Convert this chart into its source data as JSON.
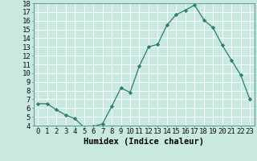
{
  "x": [
    0,
    1,
    2,
    3,
    4,
    5,
    6,
    7,
    8,
    9,
    10,
    11,
    12,
    13,
    14,
    15,
    16,
    17,
    18,
    19,
    20,
    21,
    22,
    23
  ],
  "y": [
    6.5,
    6.5,
    5.8,
    5.2,
    4.8,
    3.8,
    3.9,
    4.2,
    6.2,
    8.3,
    7.8,
    10.8,
    13.0,
    13.3,
    15.5,
    16.7,
    17.2,
    17.8,
    16.1,
    15.2,
    13.2,
    11.5,
    9.8,
    7.0
  ],
  "line_color": "#2e7d6e",
  "marker": "D",
  "markersize": 2.2,
  "background_color": "#c8e8e0",
  "grid_color": "#ffffff",
  "xlabel": "Humidex (Indice chaleur)",
  "ylabel": "",
  "xlim": [
    -0.5,
    23.5
  ],
  "ylim": [
    4,
    18
  ],
  "yticks": [
    4,
    5,
    6,
    7,
    8,
    9,
    10,
    11,
    12,
    13,
    14,
    15,
    16,
    17,
    18
  ],
  "xticks": [
    0,
    1,
    2,
    3,
    4,
    5,
    6,
    7,
    8,
    9,
    10,
    11,
    12,
    13,
    14,
    15,
    16,
    17,
    18,
    19,
    20,
    21,
    22,
    23
  ],
  "xlabel_fontsize": 7.5,
  "tick_fontsize": 6.5
}
